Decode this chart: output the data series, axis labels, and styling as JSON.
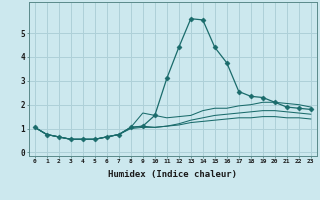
{
  "xlabel": "Humidex (Indice chaleur)",
  "ylabel": "",
  "background_color": "#cce8ee",
  "grid_color": "#aed0d8",
  "line_color": "#1a6b6b",
  "xlim": [
    -0.5,
    23.5
  ],
  "ylim": [
    -0.15,
    6.3
  ],
  "yticks": [
    0,
    1,
    2,
    3,
    4,
    5
  ],
  "xtick_labels": [
    "0",
    "1",
    "2",
    "3",
    "4",
    "5",
    "6",
    "7",
    "8",
    "9",
    "10",
    "11",
    "12",
    "13",
    "14",
    "15",
    "16",
    "17",
    "18",
    "19",
    "20",
    "21",
    "22",
    "23"
  ],
  "series": [
    {
      "x": [
        0,
        1,
        2,
        3,
        4,
        5,
        6,
        7,
        8,
        9,
        10,
        11,
        12,
        13,
        14,
        15,
        16,
        17,
        18,
        19,
        20,
        21,
        22,
        23
      ],
      "y": [
        1.05,
        0.75,
        0.65,
        0.55,
        0.55,
        0.55,
        0.65,
        0.75,
        1.05,
        1.1,
        1.55,
        3.1,
        4.4,
        5.6,
        5.55,
        4.4,
        3.75,
        2.55,
        2.35,
        2.3,
        2.1,
        1.9,
        1.85,
        1.8
      ],
      "marker": true
    },
    {
      "x": [
        0,
        1,
        2,
        3,
        4,
        5,
        6,
        7,
        8,
        9,
        10,
        11,
        12,
        13,
        14,
        15,
        16,
        17,
        18,
        19,
        20,
        21,
        22,
        23
      ],
      "y": [
        1.05,
        0.75,
        0.65,
        0.55,
        0.55,
        0.55,
        0.65,
        0.75,
        1.05,
        1.65,
        1.55,
        1.45,
        1.5,
        1.55,
        1.75,
        1.85,
        1.85,
        1.95,
        2.0,
        2.1,
        2.1,
        2.05,
        2.0,
        1.9
      ],
      "marker": false
    },
    {
      "x": [
        0,
        1,
        2,
        3,
        4,
        5,
        6,
        7,
        8,
        9,
        10,
        11,
        12,
        13,
        14,
        15,
        16,
        17,
        18,
        19,
        20,
        21,
        22,
        23
      ],
      "y": [
        1.05,
        0.75,
        0.65,
        0.55,
        0.55,
        0.55,
        0.65,
        0.75,
        1.05,
        1.1,
        1.05,
        1.1,
        1.2,
        1.35,
        1.45,
        1.55,
        1.6,
        1.65,
        1.7,
        1.75,
        1.75,
        1.7,
        1.65,
        1.6
      ],
      "marker": false
    },
    {
      "x": [
        0,
        1,
        2,
        3,
        4,
        5,
        6,
        7,
        8,
        9,
        10,
        11,
        12,
        13,
        14,
        15,
        16,
        17,
        18,
        19,
        20,
        21,
        22,
        23
      ],
      "y": [
        1.05,
        0.75,
        0.65,
        0.55,
        0.55,
        0.55,
        0.65,
        0.75,
        1.0,
        1.05,
        1.05,
        1.1,
        1.15,
        1.25,
        1.3,
        1.35,
        1.4,
        1.45,
        1.45,
        1.5,
        1.5,
        1.45,
        1.45,
        1.4
      ],
      "marker": false
    }
  ]
}
